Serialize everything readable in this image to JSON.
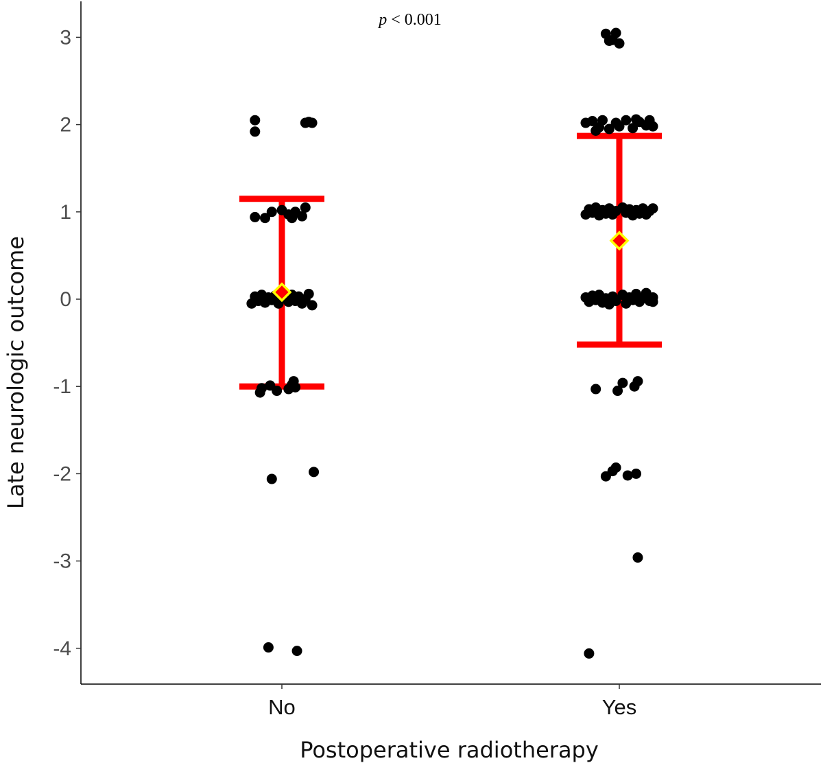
{
  "chart_data": {
    "type": "scatter",
    "title": "",
    "annotation": {
      "p_symbol": "p",
      "p_text": " < 0.001"
    },
    "xlabel": "Postoperative radiotherapy",
    "ylabel": "Late neurologic outcome",
    "categories": [
      "No",
      "Yes"
    ],
    "ylim": [
      -4.4,
      3.4
    ],
    "yticks": [
      3,
      2,
      1,
      0,
      -1,
      -2,
      -3,
      -4
    ],
    "yticklabels": [
      "3",
      "2",
      "1",
      "0",
      "-1",
      "-2",
      "-3",
      "-4"
    ],
    "grid": false,
    "legend": "none",
    "colors": {
      "points": "#000000",
      "error_bar": "#ff0000",
      "mean_fill": "#ff0000",
      "mean_stroke": "#ffff00"
    },
    "summary": [
      {
        "category": "No",
        "mean": 0.08,
        "lower": -1.0,
        "upper": 1.15
      },
      {
        "category": "Yes",
        "mean": 0.67,
        "lower": -0.52,
        "upper": 1.87
      }
    ],
    "series": [
      {
        "category": "No",
        "points": [
          {
            "jitter": -0.08,
            "y": 2.05
          },
          {
            "jitter": -0.08,
            "y": 1.92
          },
          {
            "jitter": 0.07,
            "y": 2.02
          },
          {
            "jitter": 0.08,
            "y": 2.03
          },
          {
            "jitter": 0.09,
            "y": 2.02
          },
          {
            "jitter": -0.08,
            "y": 0.94
          },
          {
            "jitter": -0.05,
            "y": 0.93
          },
          {
            "jitter": -0.03,
            "y": 1.0
          },
          {
            "jitter": 0.0,
            "y": 1.02
          },
          {
            "jitter": 0.02,
            "y": 0.97
          },
          {
            "jitter": 0.04,
            "y": 1.0
          },
          {
            "jitter": 0.06,
            "y": 0.95
          },
          {
            "jitter": 0.07,
            "y": 1.05
          },
          {
            "jitter": 0.03,
            "y": 0.93
          },
          {
            "jitter": -0.09,
            "y": -0.05
          },
          {
            "jitter": -0.08,
            "y": 0.03
          },
          {
            "jitter": -0.07,
            "y": -0.02
          },
          {
            "jitter": -0.06,
            "y": 0.05
          },
          {
            "jitter": -0.05,
            "y": -0.04
          },
          {
            "jitter": -0.04,
            "y": 0.02
          },
          {
            "jitter": -0.03,
            "y": -0.01
          },
          {
            "jitter": -0.02,
            "y": 0.04
          },
          {
            "jitter": -0.01,
            "y": -0.05
          },
          {
            "jitter": 0.01,
            "y": 0.01
          },
          {
            "jitter": 0.02,
            "y": -0.03
          },
          {
            "jitter": 0.03,
            "y": 0.05
          },
          {
            "jitter": 0.04,
            "y": -0.02
          },
          {
            "jitter": 0.05,
            "y": 0.03
          },
          {
            "jitter": 0.06,
            "y": -0.05
          },
          {
            "jitter": 0.07,
            "y": 0.0
          },
          {
            "jitter": 0.08,
            "y": 0.06
          },
          {
            "jitter": 0.09,
            "y": -0.07
          },
          {
            "jitter": -0.065,
            "y": -1.07
          },
          {
            "jitter": -0.06,
            "y": -1.02
          },
          {
            "jitter": -0.035,
            "y": -0.99
          },
          {
            "jitter": -0.015,
            "y": -1.05
          },
          {
            "jitter": 0.02,
            "y": -1.03
          },
          {
            "jitter": 0.03,
            "y": -0.98
          },
          {
            "jitter": 0.035,
            "y": -0.94
          },
          {
            "jitter": 0.04,
            "y": -1.01
          },
          {
            "jitter": -0.03,
            "y": -2.06
          },
          {
            "jitter": 0.095,
            "y": -1.98
          },
          {
            "jitter": -0.04,
            "y": -3.99
          },
          {
            "jitter": 0.045,
            "y": -4.03
          }
        ]
      },
      {
        "category": "Yes",
        "points": [
          {
            "jitter": -0.04,
            "y": 3.04
          },
          {
            "jitter": -0.03,
            "y": 2.96
          },
          {
            "jitter": -0.01,
            "y": 3.05
          },
          {
            "jitter": -0.02,
            "y": 2.97
          },
          {
            "jitter": 0.0,
            "y": 2.93
          },
          {
            "jitter": -0.1,
            "y": 2.02
          },
          {
            "jitter": -0.08,
            "y": 2.04
          },
          {
            "jitter": -0.06,
            "y": 1.97
          },
          {
            "jitter": -0.05,
            "y": 2.05
          },
          {
            "jitter": -0.03,
            "y": 1.95
          },
          {
            "jitter": -0.01,
            "y": 2.02
          },
          {
            "jitter": 0.0,
            "y": 1.98
          },
          {
            "jitter": 0.02,
            "y": 2.05
          },
          {
            "jitter": 0.04,
            "y": 1.96
          },
          {
            "jitter": 0.06,
            "y": 2.03
          },
          {
            "jitter": 0.08,
            "y": 1.99
          },
          {
            "jitter": 0.09,
            "y": 2.05
          },
          {
            "jitter": 0.1,
            "y": 1.98
          },
          {
            "jitter": -0.07,
            "y": 1.93
          },
          {
            "jitter": 0.05,
            "y": 2.06
          },
          {
            "jitter": -0.1,
            "y": 0.97
          },
          {
            "jitter": -0.09,
            "y": 1.03
          },
          {
            "jitter": -0.08,
            "y": 0.99
          },
          {
            "jitter": -0.07,
            "y": 1.05
          },
          {
            "jitter": -0.06,
            "y": 0.96
          },
          {
            "jitter": -0.05,
            "y": 1.02
          },
          {
            "jitter": -0.04,
            "y": 0.98
          },
          {
            "jitter": -0.03,
            "y": 1.04
          },
          {
            "jitter": -0.02,
            "y": 0.97
          },
          {
            "jitter": -0.01,
            "y": 1.01
          },
          {
            "jitter": 0.01,
            "y": 1.05
          },
          {
            "jitter": 0.02,
            "y": 0.99
          },
          {
            "jitter": 0.03,
            "y": 1.03
          },
          {
            "jitter": 0.04,
            "y": 0.96
          },
          {
            "jitter": 0.05,
            "y": 1.02
          },
          {
            "jitter": 0.06,
            "y": 0.98
          },
          {
            "jitter": 0.07,
            "y": 1.04
          },
          {
            "jitter": 0.08,
            "y": 0.97
          },
          {
            "jitter": 0.09,
            "y": 1.01
          },
          {
            "jitter": 0.1,
            "y": 1.04
          },
          {
            "jitter": -0.1,
            "y": 0.02
          },
          {
            "jitter": -0.09,
            "y": -0.03
          },
          {
            "jitter": -0.08,
            "y": 0.04
          },
          {
            "jitter": -0.07,
            "y": -0.01
          },
          {
            "jitter": -0.06,
            "y": 0.05
          },
          {
            "jitter": -0.05,
            "y": -0.04
          },
          {
            "jitter": -0.04,
            "y": 0.01
          },
          {
            "jitter": -0.03,
            "y": -0.06
          },
          {
            "jitter": -0.02,
            "y": 0.03
          },
          {
            "jitter": -0.01,
            "y": -0.02
          },
          {
            "jitter": 0.01,
            "y": 0.05
          },
          {
            "jitter": 0.02,
            "y": -0.05
          },
          {
            "jitter": 0.03,
            "y": 0.02
          },
          {
            "jitter": 0.04,
            "y": -0.01
          },
          {
            "jitter": 0.05,
            "y": 0.06
          },
          {
            "jitter": 0.06,
            "y": -0.03
          },
          {
            "jitter": 0.07,
            "y": 0.01
          },
          {
            "jitter": 0.08,
            "y": 0.07
          },
          {
            "jitter": 0.09,
            "y": -0.02
          },
          {
            "jitter": 0.1,
            "y": 0.02
          },
          {
            "jitter": 0.1,
            "y": -0.03
          },
          {
            "jitter": -0.07,
            "y": -1.03
          },
          {
            "jitter": -0.005,
            "y": -1.05
          },
          {
            "jitter": 0.01,
            "y": -0.96
          },
          {
            "jitter": 0.045,
            "y": -1.0
          },
          {
            "jitter": 0.055,
            "y": -0.94
          },
          {
            "jitter": -0.04,
            "y": -2.03
          },
          {
            "jitter": -0.02,
            "y": -1.97
          },
          {
            "jitter": -0.01,
            "y": -1.93
          },
          {
            "jitter": 0.025,
            "y": -2.02
          },
          {
            "jitter": 0.05,
            "y": -2.0
          },
          {
            "jitter": 0.055,
            "y": -2.96
          },
          {
            "jitter": -0.09,
            "y": -4.06
          }
        ]
      }
    ]
  }
}
